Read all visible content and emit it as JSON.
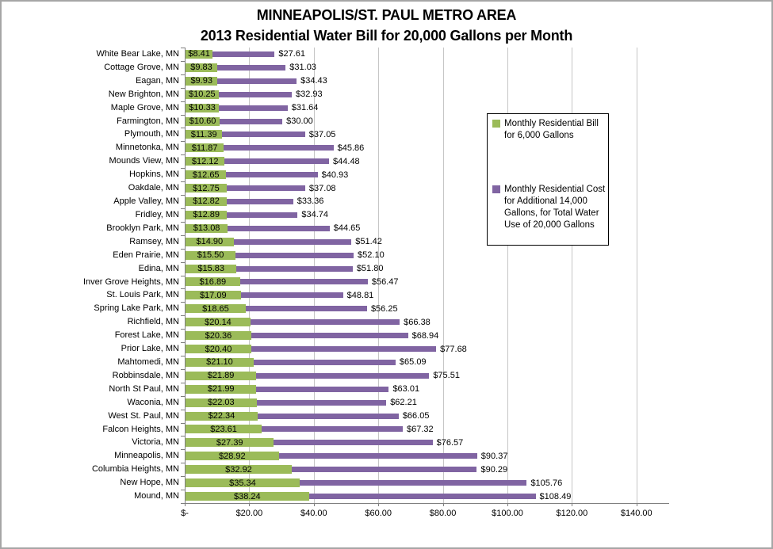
{
  "title": {
    "line1": "MINNEAPOLIS/ST. PAUL METRO AREA",
    "line2": "2013 Residential Water Bill for 20,000 Gallons per Month"
  },
  "colors": {
    "series_green": "#9BBB59",
    "series_purple": "#8064A2",
    "gridline": "#C6C6C6",
    "axis": "#7F7F7F",
    "legend_border": "#000000",
    "background": "#FFFFFF",
    "text": "#000000"
  },
  "legend": {
    "items": [
      {
        "label": "Monthly Residential Bill for 6,000 Gallons",
        "color": "#9BBB59"
      },
      {
        "label": "Monthly Residential Cost for Additional 14,000 Gallons, for Total Water Use of 20,000 Gallons",
        "color": "#8064A2"
      }
    ]
  },
  "chart_data": {
    "type": "bar",
    "orientation": "horizontal",
    "stacked": true,
    "title": "MINNEAPOLIS/ST. PAUL METRO AREA",
    "subtitle": "2013 Residential Water Bill for 20,000 Gallons per Month",
    "xlabel": "",
    "ylabel": "",
    "xlim": [
      0,
      150
    ],
    "grid": true,
    "legend_position": "overlay-right",
    "x_tick_values": [
      0,
      20,
      40,
      60,
      80,
      100,
      120,
      140
    ],
    "x_tick_labels": [
      "$-",
      "$20.00",
      "$40.00",
      "$60.00",
      "$80.00",
      "$100.00",
      "$120.00",
      "$140.00"
    ],
    "value_prefix": "$",
    "categories": [
      "White Bear Lake, MN",
      "Cottage Grove, MN",
      "Eagan, MN",
      "New Brighton, MN",
      "Maple Grove, MN",
      "Farmington, MN",
      "Plymouth, MN",
      "Minnetonka, MN",
      "Mounds View, MN",
      "Hopkins, MN",
      "Oakdale, MN",
      "Apple Valley, MN",
      "Fridley, MN",
      "Brooklyn Park, MN",
      "Ramsey, MN",
      "Eden Prairie, MN",
      "Edina, MN",
      "Inver Grove Heights, MN",
      "St. Louis Park, MN",
      "Spring Lake Park, MN",
      "Richfield, MN",
      "Forest Lake, MN",
      "Prior Lake, MN",
      "Mahtomedi, MN",
      "Robbinsdale, MN",
      "North St Paul, MN",
      "Waconia, MN",
      "West St. Paul, MN",
      "Falcon Heights, MN",
      "Victoria, MN",
      "Minneapolis, MN",
      "Columbia Heights, MN",
      "New Hope, MN",
      "Mound, MN"
    ],
    "series": [
      {
        "name": "Monthly Residential Bill for 6,000 Gallons",
        "color": "#9BBB59",
        "data_label_position": "inside-center",
        "values": [
          8.41,
          9.83,
          9.93,
          10.25,
          10.33,
          10.6,
          11.39,
          11.87,
          12.12,
          12.65,
          12.75,
          12.82,
          12.89,
          13.08,
          14.9,
          15.5,
          15.83,
          16.89,
          17.09,
          18.65,
          20.14,
          20.36,
          20.4,
          21.1,
          21.89,
          21.99,
          22.03,
          22.34,
          23.61,
          27.39,
          28.92,
          32.92,
          35.34,
          38.24
        ]
      },
      {
        "name": "Monthly Residential Cost for Additional 14,000 Gallons, for Total Water Use of 20,000 Gallons",
        "color": "#8064A2",
        "data_label_position": "outside-end-shows-stack-total",
        "values": [
          19.2,
          21.2,
          24.5,
          22.68,
          21.31,
          19.4,
          25.66,
          33.99,
          32.36,
          28.28,
          24.33,
          20.54,
          21.85,
          31.57,
          36.52,
          36.6,
          35.97,
          39.58,
          31.72,
          37.6,
          46.24,
          48.58,
          57.28,
          43.99,
          53.62,
          41.02,
          40.18,
          43.71,
          43.71,
          49.18,
          61.45,
          57.37,
          70.42,
          70.25
        ]
      }
    ],
    "stack_totals": [
      27.61,
      31.03,
      34.43,
      32.93,
      31.64,
      30.0,
      37.05,
      45.86,
      44.48,
      40.93,
      37.08,
      33.36,
      34.74,
      44.65,
      51.42,
      52.1,
      51.8,
      56.47,
      48.81,
      56.25,
      66.38,
      68.94,
      77.68,
      65.09,
      75.51,
      63.01,
      62.21,
      66.05,
      67.32,
      76.57,
      90.37,
      90.29,
      105.76,
      108.49
    ]
  }
}
